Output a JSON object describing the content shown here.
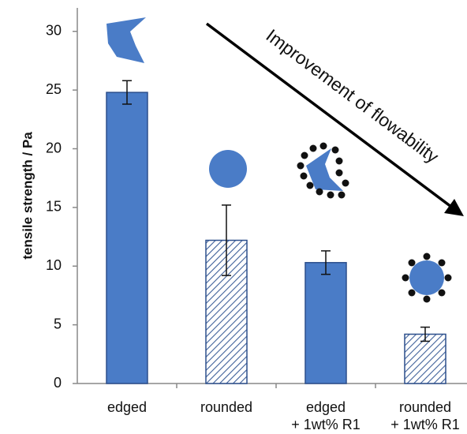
{
  "chart_data": {
    "type": "bar",
    "y_label": "tensile strength / Pa",
    "annotation": "Improvement of flowability",
    "categories": [
      [
        "edged"
      ],
      [
        "rounded"
      ],
      [
        "edged",
        "+ 1wt% R1"
      ],
      [
        "rounded",
        "+ 1wt% R1"
      ]
    ],
    "values": [
      24.8,
      12.2,
      10.3,
      4.2
    ],
    "errors": [
      1.0,
      3.0,
      1.0,
      0.6
    ],
    "hatched": [
      false,
      true,
      false,
      true
    ],
    "color": "#4a7cc7",
    "ylim": [
      0,
      32
    ],
    "yticks": [
      0,
      5,
      10,
      15,
      20,
      25,
      30
    ],
    "grid": false
  }
}
